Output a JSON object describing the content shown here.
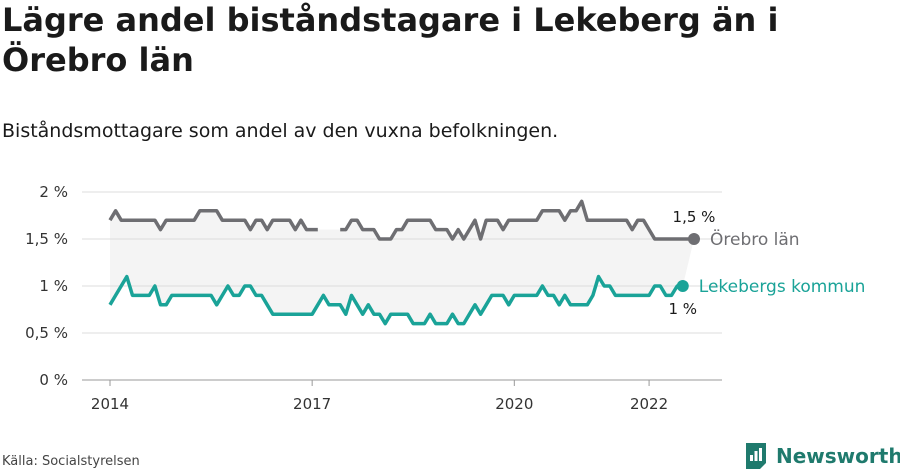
{
  "title": "Lägre andel biståndstagare i Lekeberg än i Örebro län",
  "subtitle": "Biståndsmottagare som andel av den vuxna befolkningen.",
  "source": "Källa: Socialstyrelsen",
  "brand": "Newsworthy",
  "colors": {
    "lan": "#6e6e72",
    "kommun": "#1aa398",
    "grid": "#dddddd",
    "band": "#f4f4f4",
    "brand": "#1f7a6d"
  },
  "chart_data": {
    "type": "line",
    "x_axis": {
      "min": 2014,
      "max": 2022.6667,
      "ticks": [
        2014,
        2017,
        2020,
        2022
      ],
      "tick_labels": [
        "2014",
        "2017",
        "2020",
        "2022"
      ]
    },
    "y_axis": {
      "min": 0,
      "max": 2,
      "ticks": [
        0,
        0.5,
        1,
        1.5,
        2
      ],
      "tick_labels": [
        "0 %",
        "0,5 %",
        "1 %",
        "1,5 %",
        "2 %"
      ]
    },
    "grid": true,
    "series": [
      {
        "name": "Örebro län",
        "end_label": "1,5 %",
        "x_start": 2014,
        "step_months": 1,
        "values": [
          1.7,
          1.8,
          1.7,
          1.7,
          1.7,
          1.7,
          1.7,
          1.7,
          1.7,
          1.6,
          1.7,
          1.7,
          1.7,
          1.7,
          1.7,
          1.7,
          1.8,
          1.8,
          1.8,
          1.8,
          1.7,
          1.7,
          1.7,
          1.7,
          1.7,
          1.6,
          1.7,
          1.7,
          1.6,
          1.7,
          1.7,
          1.7,
          1.7,
          1.6,
          1.7,
          1.6,
          1.6,
          1.6,
          null,
          null,
          null,
          1.6,
          1.6,
          1.7,
          1.7,
          1.6,
          1.6,
          1.6,
          1.5,
          1.5,
          1.5,
          1.6,
          1.6,
          1.7,
          1.7,
          1.7,
          1.7,
          1.7,
          1.6,
          1.6,
          1.6,
          1.5,
          1.6,
          1.5,
          1.6,
          1.7,
          1.5,
          1.7,
          1.7,
          1.7,
          1.6,
          1.7,
          1.7,
          1.7,
          1.7,
          1.7,
          1.7,
          1.8,
          1.8,
          1.8,
          1.8,
          1.7,
          1.8,
          1.8,
          1.9,
          1.7,
          1.7,
          1.7,
          1.7,
          1.7,
          1.7,
          1.7,
          1.7,
          1.6,
          1.7,
          1.7,
          1.6,
          1.5,
          1.5,
          1.5,
          1.5,
          1.5,
          1.5,
          1.5,
          1.5
        ]
      },
      {
        "name": "Lekebergs kommun",
        "end_label": "1 %",
        "x_start": 2014,
        "step_months": 1,
        "values": [
          0.8,
          0.9,
          1.0,
          1.1,
          0.9,
          0.9,
          0.9,
          0.9,
          1.0,
          0.8,
          0.8,
          0.9,
          0.9,
          0.9,
          0.9,
          0.9,
          0.9,
          0.9,
          0.9,
          0.8,
          0.9,
          1.0,
          0.9,
          0.9,
          1.0,
          1.0,
          0.9,
          0.9,
          0.8,
          0.7,
          0.7,
          0.7,
          0.7,
          0.7,
          0.7,
          0.7,
          0.7,
          0.8,
          0.9,
          0.8,
          0.8,
          0.8,
          0.7,
          0.9,
          0.8,
          0.7,
          0.8,
          0.7,
          0.7,
          0.6,
          0.7,
          0.7,
          0.7,
          0.7,
          0.6,
          0.6,
          0.6,
          0.7,
          0.6,
          0.6,
          0.6,
          0.7,
          0.6,
          0.6,
          0.7,
          0.8,
          0.7,
          0.8,
          0.9,
          0.9,
          0.9,
          0.8,
          0.9,
          0.9,
          0.9,
          0.9,
          0.9,
          1.0,
          0.9,
          0.9,
          0.8,
          0.9,
          0.8,
          0.8,
          0.8,
          0.8,
          0.9,
          1.1,
          1.0,
          1.0,
          0.9,
          0.9,
          0.9,
          0.9,
          0.9,
          0.9,
          0.9,
          1.0,
          1.0,
          0.9,
          0.9,
          1.0,
          1.0
        ]
      }
    ]
  }
}
